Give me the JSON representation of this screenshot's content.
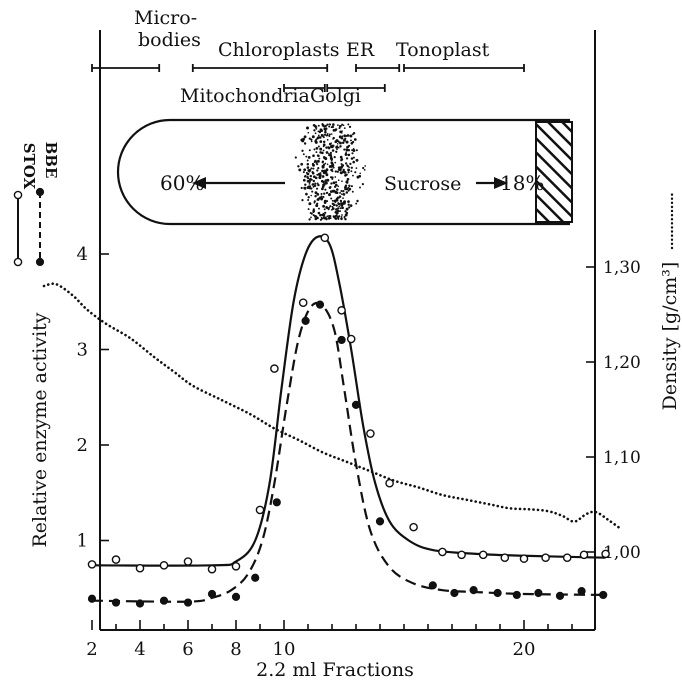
{
  "chart_data": {
    "type": "line",
    "xlabel": "2.2 ml Fractions",
    "ylabel": "Relative enzyme activity",
    "y2label": "Density [g/cm³]",
    "xlim": [
      0,
      23
    ],
    "ylim": [
      0,
      5
    ],
    "y2lim": [
      0.95,
      1.35
    ],
    "x_ticks": [
      2,
      4,
      6,
      8,
      10,
      20
    ],
    "x_minor_ticks": [
      3,
      5,
      7,
      9,
      11,
      12,
      13,
      14,
      15,
      16,
      17,
      18,
      19,
      21,
      22
    ],
    "y_ticks": [
      1,
      2,
      3,
      4
    ],
    "y2_ticks": [
      "1,00",
      "1,10",
      "1,20",
      "1,30"
    ],
    "y2_tick_values": [
      1.0,
      1.1,
      1.2,
      1.3
    ],
    "series": [
      {
        "name": "STOX",
        "marker": "open-circle",
        "line": "solid",
        "points": [
          [
            2,
            0.75
          ],
          [
            3,
            0.8
          ],
          [
            4,
            0.71
          ],
          [
            5,
            0.74
          ],
          [
            6,
            0.78
          ],
          [
            7,
            0.7
          ],
          [
            8,
            0.73
          ],
          [
            9,
            1.32
          ],
          [
            9.6,
            2.8
          ],
          [
            10.8,
            3.49
          ],
          [
            11.7,
            4.17
          ],
          [
            12.4,
            3.41
          ],
          [
            12.8,
            3.11
          ],
          [
            13.6,
            2.12
          ],
          [
            14.4,
            1.6
          ],
          [
            15.4,
            1.14
          ],
          [
            16.6,
            0.88
          ],
          [
            17.4,
            0.85
          ],
          [
            18.3,
            0.85
          ],
          [
            19.2,
            0.82
          ],
          [
            20.0,
            0.81
          ],
          [
            20.9,
            0.82
          ],
          [
            21.8,
            0.82
          ],
          [
            22.5,
            0.85
          ],
          [
            23.4,
            0.86
          ]
        ],
        "curve": [
          [
            2,
            0.74
          ],
          [
            7,
            0.74
          ],
          [
            8,
            0.78
          ],
          [
            8.8,
            1.0
          ],
          [
            9.4,
            1.6
          ],
          [
            9.9,
            2.6
          ],
          [
            10.4,
            3.5
          ],
          [
            10.9,
            4.0
          ],
          [
            11.4,
            4.18
          ],
          [
            11.9,
            4.1
          ],
          [
            12.3,
            3.7
          ],
          [
            12.8,
            3.0
          ],
          [
            13.3,
            2.2
          ],
          [
            13.8,
            1.6
          ],
          [
            14.4,
            1.2
          ],
          [
            15.2,
            1.0
          ],
          [
            16.2,
            0.9
          ],
          [
            18,
            0.86
          ],
          [
            20,
            0.84
          ],
          [
            23.4,
            0.82
          ]
        ]
      },
      {
        "name": "BBE",
        "marker": "filled-circle",
        "line": "dashed",
        "points": [
          [
            2,
            0.39
          ],
          [
            3,
            0.35
          ],
          [
            4,
            0.34
          ],
          [
            5,
            0.37
          ],
          [
            6,
            0.35
          ],
          [
            7,
            0.44
          ],
          [
            8,
            0.41
          ],
          [
            8.8,
            0.61
          ],
          [
            9.7,
            1.4
          ],
          [
            10.9,
            3.3
          ],
          [
            11.5,
            3.47
          ],
          [
            12.4,
            3.1
          ],
          [
            13.0,
            2.42
          ],
          [
            14.0,
            1.2
          ],
          [
            16.2,
            0.53
          ],
          [
            17.1,
            0.45
          ],
          [
            17.9,
            0.48
          ],
          [
            18.9,
            0.45
          ],
          [
            19.7,
            0.43
          ],
          [
            20.6,
            0.45
          ],
          [
            21.5,
            0.42
          ],
          [
            22.4,
            0.47
          ],
          [
            23.3,
            0.43
          ]
        ],
        "curve": [
          [
            2,
            0.37
          ],
          [
            6,
            0.36
          ],
          [
            7,
            0.4
          ],
          [
            7.8,
            0.48
          ],
          [
            8.5,
            0.65
          ],
          [
            9.1,
            1.0
          ],
          [
            9.6,
            1.6
          ],
          [
            10.1,
            2.4
          ],
          [
            10.6,
            3.1
          ],
          [
            11.1,
            3.44
          ],
          [
            11.6,
            3.46
          ],
          [
            12.1,
            3.2
          ],
          [
            12.5,
            2.6
          ],
          [
            13.0,
            1.8
          ],
          [
            13.6,
            1.1
          ],
          [
            14.4,
            0.72
          ],
          [
            15.4,
            0.55
          ],
          [
            16.6,
            0.48
          ],
          [
            18,
            0.46
          ],
          [
            20,
            0.44
          ],
          [
            23.4,
            0.43
          ]
        ]
      },
      {
        "name": "Density",
        "axis": "right",
        "line": "dotted",
        "curve": [
          [
            0,
            1.28
          ],
          [
            0.5,
            1.282
          ],
          [
            1.2,
            1.27
          ],
          [
            1.8,
            1.255
          ],
          [
            2.6,
            1.24
          ],
          [
            3.6,
            1.225
          ],
          [
            4.6,
            1.205
          ],
          [
            5.4,
            1.19
          ],
          [
            6.2,
            1.175
          ],
          [
            7.4,
            1.16
          ],
          [
            8.6,
            1.145
          ],
          [
            9.6,
            1.13
          ],
          [
            10.6,
            1.118
          ],
          [
            11.6,
            1.105
          ],
          [
            12.6,
            1.095
          ],
          [
            13.6,
            1.085
          ],
          [
            14.6,
            1.075
          ],
          [
            15.6,
            1.068
          ],
          [
            16.6,
            1.06
          ],
          [
            17.6,
            1.055
          ],
          [
            18.6,
            1.05
          ],
          [
            19.4,
            1.046
          ],
          [
            20.2,
            1.045
          ],
          [
            21.0,
            1.043
          ],
          [
            21.6,
            1.038
          ],
          [
            22.1,
            1.032
          ],
          [
            22.6,
            1.04
          ],
          [
            23.0,
            1.042
          ],
          [
            23.5,
            1.034
          ],
          [
            24.0,
            1.025
          ]
        ]
      }
    ],
    "tube": {
      "left_label": "60%",
      "middle_label": "Sucrose",
      "right_label": "18%"
    },
    "markers": [
      {
        "label": "Micro-\nbodies",
        "range": [
          2,
          4.8
        ],
        "row": "top"
      },
      {
        "label": "Chloroplasts",
        "range": [
          6.2,
          11.8
        ],
        "row": "top"
      },
      {
        "label": "ER",
        "range": [
          13,
          14.8
        ],
        "row": "top"
      },
      {
        "label": "Tonoplast",
        "range": [
          15,
          20
        ],
        "row": "top"
      },
      {
        "label": "Mitochondria",
        "range": [
          10,
          11.7
        ],
        "row": "bottom"
      },
      {
        "label": "Golgi",
        "range": [
          11.8,
          14.2
        ],
        "row": "bottom"
      }
    ]
  },
  "legend": {
    "stox": "STOX",
    "bbe": "BBE"
  }
}
